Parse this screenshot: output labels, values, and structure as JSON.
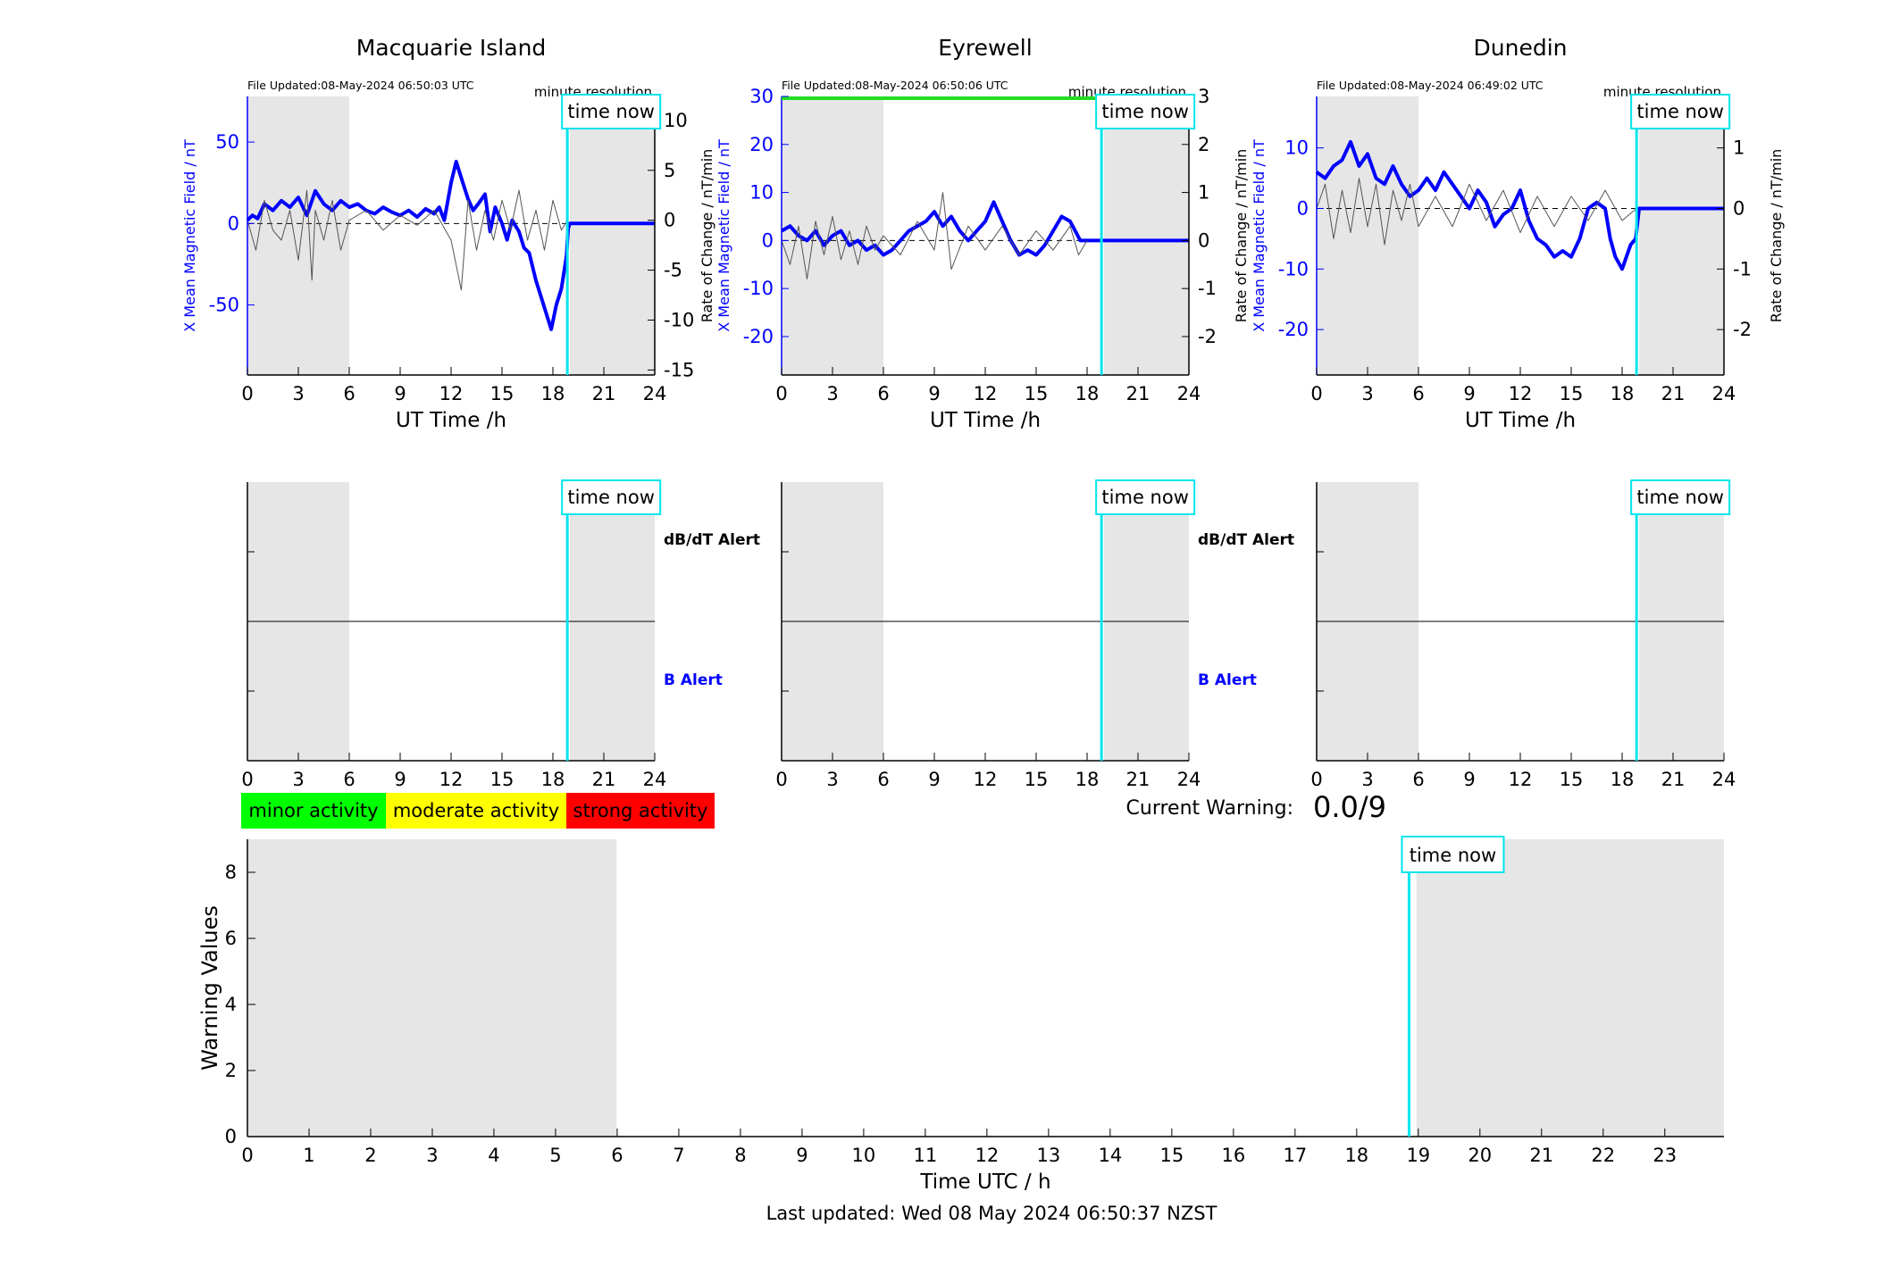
{
  "figure": {
    "last_updated": "Last updated: Wed 08 May 2024 06:50:37 NZST",
    "time_now_label": "time now",
    "minute_resolution_label": "minute resolution",
    "current_warning_label": "Current Warning:",
    "current_warning_value": "0.0/9",
    "legend": [
      {
        "label": "minor activity",
        "color": "#00ff00"
      },
      {
        "label": "moderate activity",
        "color": "#ffff00"
      },
      {
        "label": "strong activity",
        "color": "#ff0000"
      }
    ],
    "colors": {
      "mean_field": "#0000ff",
      "rate_of_change": "#555555",
      "night_shade": "#e6e6e6",
      "time_now": "#00e5ee"
    }
  },
  "chart_data": [
    {
      "type": "line",
      "station": "Macquarie Island",
      "title": "Macquarie Island",
      "file_updated": "File Updated:08-May-2024 06:50:03 UTC",
      "xlabel": "UT Time /h",
      "ylabel_left": "X Mean Magnetic Field / nT",
      "ylabel_right": "Rate of Change / nT/min",
      "xlim": [
        0,
        24
      ],
      "xticks": [
        0,
        3,
        6,
        9,
        12,
        15,
        18,
        21,
        24
      ],
      "ylim_left": [
        -93,
        78
      ],
      "yticks_left": [
        -50,
        0,
        50
      ],
      "ylim_right": [
        -15.5,
        12.4
      ],
      "yticks_right": [
        -15,
        -10,
        -5,
        0,
        5,
        10
      ],
      "night_shading": [
        [
          0,
          6
        ],
        [
          19,
          24
        ]
      ],
      "time_now": 18.85,
      "series": [
        {
          "name": "X Mean Magnetic Field",
          "axis": "left",
          "x": [
            0,
            0.3,
            0.6,
            1,
            1.5,
            2,
            2.5,
            3,
            3.5,
            4,
            4.5,
            5,
            5.5,
            6,
            6.5,
            7,
            7.5,
            8,
            8.5,
            9,
            9.5,
            10,
            10.5,
            11,
            11.3,
            11.6,
            12,
            12.3,
            12.6,
            13,
            13.3,
            13.6,
            14,
            14.3,
            14.6,
            15,
            15.3,
            15.6,
            16,
            16.3,
            16.6,
            17,
            17.3,
            17.6,
            17.9,
            18.2,
            18.5,
            18.8,
            18.9,
            19,
            20,
            21,
            22,
            23,
            24
          ],
          "y": [
            2,
            5,
            3,
            12,
            8,
            14,
            10,
            16,
            5,
            20,
            12,
            8,
            14,
            10,
            12,
            8,
            6,
            10,
            7,
            5,
            8,
            4,
            9,
            6,
            10,
            2,
            25,
            38,
            28,
            15,
            8,
            12,
            18,
            -5,
            10,
            0,
            -10,
            2,
            -5,
            -15,
            -18,
            -35,
            -45,
            -55,
            -65,
            -50,
            -40,
            -20,
            -3,
            0,
            0,
            0,
            0,
            0,
            0
          ]
        },
        {
          "name": "Rate of Change",
          "axis": "right",
          "x": [
            0,
            0.5,
            1,
            1.5,
            2,
            2.5,
            3,
            3.5,
            3.8,
            4,
            4.5,
            5,
            5.5,
            6,
            7,
            8,
            9,
            10,
            11,
            12,
            12.6,
            13,
            13.5,
            14,
            14.5,
            15,
            15.5,
            16,
            16.5,
            17,
            17.5,
            18,
            18.5,
            18.85
          ],
          "y": [
            0,
            -3,
            2,
            -1,
            -2,
            1,
            -4,
            3,
            -6,
            1,
            -2,
            2,
            -3,
            0,
            1,
            -1,
            0.5,
            -0.5,
            1,
            -2,
            -7,
            2,
            -3,
            1,
            -2,
            2,
            -1,
            3,
            -2,
            1,
            -3,
            2,
            -1,
            0
          ]
        }
      ]
    },
    {
      "type": "line",
      "station": "Eyrewell",
      "title": "Eyrewell",
      "file_updated": "File Updated:08-May-2024 06:50:06 UTC",
      "xlabel": "UT Time /h",
      "ylabel_left": "X Mean Magnetic Field / nT",
      "ylabel_right": "Rate of Change / nT/min",
      "xlim": [
        0,
        24
      ],
      "xticks": [
        0,
        3,
        6,
        9,
        12,
        15,
        18,
        21,
        24
      ],
      "ylim_left": [
        -28,
        30
      ],
      "yticks_left": [
        -20,
        -10,
        0,
        10,
        20,
        30
      ],
      "ylim_right": [
        -2.8,
        3.0
      ],
      "yticks_right": [
        -2,
        -1,
        0,
        1,
        2,
        3
      ],
      "night_shading": [
        [
          0,
          6
        ],
        [
          19,
          24
        ]
      ],
      "time_now": 18.85,
      "series": [
        {
          "name": "X Mean Magnetic Field",
          "axis": "left",
          "x": [
            0,
            0.5,
            1,
            1.5,
            2,
            2.5,
            3,
            3.5,
            4,
            4.5,
            5,
            5.5,
            6,
            6.5,
            7,
            7.5,
            8,
            8.5,
            9,
            9.5,
            10,
            10.5,
            11,
            11.5,
            12,
            12.5,
            13,
            13.5,
            14,
            14.5,
            15,
            15.5,
            16,
            16.5,
            17,
            17.3,
            17.6,
            18,
            18.5,
            19,
            20,
            21,
            22,
            23,
            24
          ],
          "y": [
            2,
            3,
            1,
            0,
            2,
            -1,
            1,
            2,
            -1,
            0,
            -2,
            -1,
            -3,
            -2,
            0,
            2,
            3,
            4,
            6,
            3,
            5,
            2,
            0,
            2,
            4,
            8,
            4,
            0,
            -3,
            -2,
            -3,
            -1,
            2,
            5,
            4,
            2,
            0,
            0,
            0,
            0,
            0,
            0,
            0,
            0,
            0
          ]
        },
        {
          "name": "Rate of Change",
          "axis": "right",
          "x": [
            0,
            0.5,
            1,
            1.5,
            2,
            2.5,
            3,
            3.5,
            4,
            4.5,
            5,
            5.5,
            6,
            7,
            8,
            9,
            9.5,
            10,
            11,
            12,
            13,
            14,
            15,
            16,
            17,
            17.5,
            18
          ],
          "y": [
            0,
            -0.5,
            0.3,
            -0.8,
            0.4,
            -0.3,
            0.5,
            -0.4,
            0.2,
            -0.5,
            0.3,
            -0.2,
            0.1,
            -0.3,
            0.4,
            -0.2,
            1.0,
            -0.6,
            0.3,
            -0.2,
            0.3,
            -0.3,
            0.2,
            -0.2,
            0.3,
            -0.3,
            0
          ]
        }
      ]
    },
    {
      "type": "line",
      "station": "Dunedin",
      "title": "Dunedin",
      "file_updated": "File Updated:08-May-2024 06:49:02 UTC",
      "xlabel": "UT Time /h",
      "ylabel_left": "X Mean Magnetic Field / nT",
      "ylabel_right": "Rate of Change / nT/min",
      "xlim": [
        0,
        24
      ],
      "xticks": [
        0,
        3,
        6,
        9,
        12,
        15,
        18,
        21,
        24
      ],
      "ylim_left": [
        -27.5,
        18.5
      ],
      "yticks_left": [
        -20,
        -10,
        0,
        10
      ],
      "ylim_right": [
        -2.75,
        1.85
      ],
      "yticks_right": [
        -2,
        -1,
        0,
        1
      ],
      "night_shading": [
        [
          0,
          6
        ],
        [
          19,
          24
        ]
      ],
      "time_now": 18.85,
      "series": [
        {
          "name": "X Mean Magnetic Field",
          "axis": "left",
          "x": [
            0,
            0.5,
            1,
            1.5,
            2,
            2.5,
            3,
            3.5,
            4,
            4.5,
            5,
            5.5,
            6,
            6.5,
            7,
            7.5,
            8,
            8.5,
            9,
            9.5,
            10,
            10.5,
            11,
            11.5,
            12,
            12.5,
            13,
            13.5,
            14,
            14.5,
            15,
            15.5,
            16,
            16.5,
            17,
            17.3,
            17.6,
            18,
            18.5,
            18.8,
            19,
            20,
            21,
            22,
            23,
            24
          ],
          "y": [
            6,
            5,
            7,
            8,
            11,
            7,
            9,
            5,
            4,
            7,
            4,
            2,
            3,
            5,
            3,
            6,
            4,
            2,
            0,
            3,
            1,
            -3,
            -1,
            0,
            3,
            -2,
            -5,
            -6,
            -8,
            -7,
            -8,
            -5,
            0,
            1,
            0,
            -5,
            -8,
            -10,
            -6,
            -5,
            0,
            0,
            0,
            0,
            0,
            0
          ]
        },
        {
          "name": "Rate of Change",
          "axis": "right",
          "x": [
            0,
            0.5,
            1,
            1.5,
            2,
            2.5,
            3,
            3.5,
            4,
            4.5,
            5,
            5.5,
            6,
            7,
            8,
            9,
            10,
            11,
            12,
            13,
            14,
            15,
            16,
            17,
            18,
            18.85
          ],
          "y": [
            0,
            0.4,
            -0.5,
            0.3,
            -0.4,
            0.5,
            -0.3,
            0.4,
            -0.6,
            0.3,
            -0.2,
            0.4,
            -0.3,
            0.2,
            -0.3,
            0.4,
            -0.2,
            0.3,
            -0.4,
            0.2,
            -0.3,
            0.2,
            -0.2,
            0.3,
            -0.2,
            0
          ]
        }
      ]
    },
    {
      "type": "line",
      "station": "Macquarie Island",
      "panel": "alert",
      "upper_label": "dB/dT Alert",
      "lower_label": "B Alert",
      "xlim": [
        0,
        24
      ],
      "xticks": [
        0,
        3,
        6,
        9,
        12,
        15,
        18,
        21,
        24
      ],
      "night_shading": [
        [
          0,
          6
        ],
        [
          19,
          24
        ]
      ],
      "time_now": 18.85
    },
    {
      "type": "line",
      "station": "Eyrewell",
      "panel": "alert",
      "upper_label": "dB/dT Alert",
      "lower_label": "B Alert",
      "xlim": [
        0,
        24
      ],
      "xticks": [
        0,
        3,
        6,
        9,
        12,
        15,
        18,
        21,
        24
      ],
      "night_shading": [
        [
          0,
          6
        ],
        [
          19,
          24
        ]
      ],
      "time_now": 18.85
    },
    {
      "type": "line",
      "station": "Dunedin",
      "panel": "alert",
      "upper_label": "",
      "lower_label": "",
      "xlim": [
        0,
        24
      ],
      "xticks": [
        0,
        3,
        6,
        9,
        12,
        15,
        18,
        21,
        24
      ],
      "night_shading": [
        [
          0,
          6
        ],
        [
          19,
          24
        ]
      ],
      "time_now": 18.85
    },
    {
      "type": "bar",
      "panel": "warning",
      "xlabel": "Time UTC / h",
      "ylabel": "Warning Values",
      "xlim": [
        0,
        24
      ],
      "xticks": [
        0,
        1,
        2,
        3,
        4,
        5,
        6,
        7,
        8,
        9,
        10,
        11,
        12,
        13,
        14,
        15,
        16,
        17,
        18,
        19,
        20,
        21,
        22,
        23
      ],
      "ylim": [
        0,
        9
      ],
      "yticks": [
        0,
        2,
        4,
        6,
        8
      ],
      "night_shading": [
        [
          0,
          6
        ],
        [
          19,
          24
        ]
      ],
      "time_now": 18.85,
      "values": []
    }
  ]
}
